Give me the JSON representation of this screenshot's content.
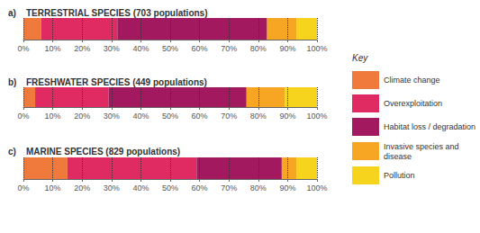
{
  "chart_data": [
    {
      "type": "bar",
      "panel_label": "a)",
      "title": "TERRESTRIAL SPECIES (703 populations)",
      "orientation": "horizontal",
      "stacked": true,
      "grid": true,
      "tick_labels": "x",
      "legend": "right",
      "legend_title": "Key",
      "categories": [
        null
      ],
      "series": [
        {
          "name": "Climate change",
          "color": "#f07a3c",
          "values": [
            6
          ]
        },
        {
          "name": "Overexploitation",
          "color": "#df2a62",
          "values": [
            26
          ]
        },
        {
          "name": "Habitat loss / degradation",
          "color": "#a3195f",
          "values": [
            51
          ]
        },
        {
          "name": "Invasive species and disease",
          "color": "#f6a623",
          "values": [
            10
          ]
        },
        {
          "name": "Pollution",
          "color": "#f6d31c",
          "values": [
            7
          ]
        }
      ],
      "xlim": [
        0,
        100
      ],
      "xticks": [
        {
          "value": 0,
          "label": "0%"
        },
        {
          "value": 10,
          "label": "10%"
        },
        {
          "value": 20,
          "label": "20%"
        },
        {
          "value": 30,
          "label": "30%"
        },
        {
          "value": 40,
          "label": "40%"
        },
        {
          "value": 50,
          "label": "50%"
        },
        {
          "value": 60,
          "label": "60%"
        },
        {
          "value": 70,
          "label": "70%"
        },
        {
          "value": 80,
          "label": "80%"
        },
        {
          "value": 90,
          "label": "90%"
        },
        {
          "value": 100,
          "label": "100%"
        }
      ]
    },
    {
      "type": "bar",
      "panel_label": "b)",
      "title": "FRESHWATER SPECIES (449 populations)",
      "orientation": "horizontal",
      "stacked": true,
      "grid": true,
      "tick_labels": "x",
      "categories": [
        null
      ],
      "series": [
        {
          "name": "Climate change",
          "color": "#f07a3c",
          "values": [
            4
          ]
        },
        {
          "name": "Overexploitation",
          "color": "#df2a62",
          "values": [
            25
          ]
        },
        {
          "name": "Habitat loss / degradation",
          "color": "#a3195f",
          "values": [
            47
          ]
        },
        {
          "name": "Invasive species and disease",
          "color": "#f6a623",
          "values": [
            13
          ]
        },
        {
          "name": "Pollution",
          "color": "#f6d31c",
          "values": [
            11
          ]
        }
      ],
      "xlim": [
        0,
        100
      ],
      "xticks": [
        {
          "value": 0,
          "label": "0%"
        },
        {
          "value": 10,
          "label": "10%"
        },
        {
          "value": 20,
          "label": "20%"
        },
        {
          "value": 30,
          "label": "30%"
        },
        {
          "value": 40,
          "label": "40%"
        },
        {
          "value": 50,
          "label": "50%"
        },
        {
          "value": 60,
          "label": "60%"
        },
        {
          "value": 70,
          "label": "70%"
        },
        {
          "value": 80,
          "label": "80%"
        },
        {
          "value": 90,
          "label": "90%"
        },
        {
          "value": 100,
          "label": "100%"
        }
      ]
    },
    {
      "type": "bar",
      "panel_label": "c)",
      "title": "MARINE SPECIES (829 populations)",
      "orientation": "horizontal",
      "stacked": true,
      "grid": true,
      "tick_labels": "x",
      "categories": [
        null
      ],
      "series": [
        {
          "name": "Climate change",
          "color": "#f07a3c",
          "values": [
            15
          ]
        },
        {
          "name": "Overexploitation",
          "color": "#df2a62",
          "values": [
            44
          ]
        },
        {
          "name": "Habitat loss / degradation",
          "color": "#a3195f",
          "values": [
            29
          ]
        },
        {
          "name": "Invasive species and disease",
          "color": "#f6a623",
          "values": [
            5
          ]
        },
        {
          "name": "Pollution",
          "color": "#f6d31c",
          "values": [
            7
          ]
        }
      ],
      "xlim": [
        0,
        100
      ],
      "xticks": [
        {
          "value": 0,
          "label": "0%"
        },
        {
          "value": 10,
          "label": "10%"
        },
        {
          "value": 20,
          "label": "20%"
        },
        {
          "value": 30,
          "label": "30%"
        },
        {
          "value": 40,
          "label": "40%"
        },
        {
          "value": 50,
          "label": "50%"
        },
        {
          "value": 60,
          "label": "60%"
        },
        {
          "value": 70,
          "label": "70%"
        },
        {
          "value": 80,
          "label": "80%"
        },
        {
          "value": 90,
          "label": "90%"
        },
        {
          "value": 100,
          "label": "100%"
        }
      ]
    }
  ]
}
